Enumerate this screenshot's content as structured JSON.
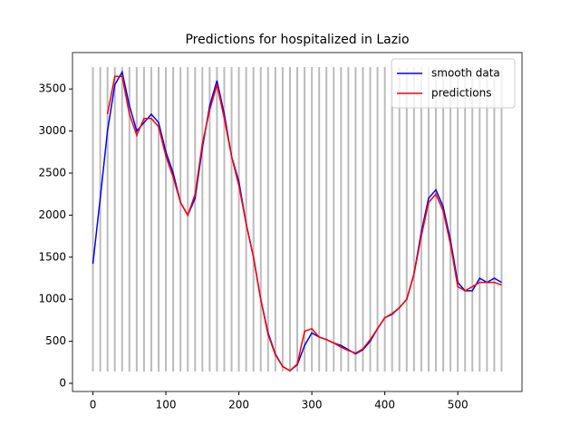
{
  "chart_data": {
    "type": "line",
    "title": "Predictions for hospitalized in Lazio",
    "x": [
      0,
      10,
      20,
      30,
      40,
      50,
      60,
      70,
      80,
      90,
      100,
      110,
      120,
      130,
      140,
      150,
      160,
      170,
      180,
      190,
      200,
      210,
      220,
      230,
      240,
      250,
      260,
      270,
      280,
      290,
      300,
      310,
      320,
      330,
      340,
      350,
      360,
      370,
      380,
      390,
      400,
      410,
      420,
      430,
      440,
      450,
      460,
      470,
      480,
      490,
      500,
      510,
      520,
      530,
      540,
      550,
      560
    ],
    "series": [
      {
        "name": "smooth data",
        "color": "#0000ff",
        "values": [
          1420,
          2200,
          3000,
          3550,
          3700,
          3300,
          3000,
          3100,
          3200,
          3100,
          2750,
          2500,
          2150,
          2000,
          2200,
          2800,
          3300,
          3600,
          3200,
          2700,
          2400,
          1900,
          1500,
          1000,
          600,
          350,
          200,
          150,
          220,
          450,
          600,
          550,
          520,
          480,
          450,
          400,
          350,
          400,
          500,
          650,
          780,
          820,
          900,
          1000,
          1300,
          1800,
          2200,
          2300,
          2100,
          1700,
          1200,
          1100,
          1100,
          1250,
          1200,
          1250,
          1200
        ]
      },
      {
        "name": "predictions",
        "color": "#ff0000",
        "values": [
          null,
          null,
          3200,
          3650,
          3650,
          3200,
          2950,
          3150,
          3150,
          3050,
          2700,
          2450,
          2150,
          2000,
          2250,
          2850,
          3250,
          3550,
          3150,
          2700,
          2350,
          1900,
          1500,
          1000,
          580,
          340,
          200,
          150,
          230,
          620,
          650,
          550,
          520,
          480,
          430,
          390,
          360,
          410,
          520,
          650,
          780,
          830,
          900,
          1000,
          1300,
          1750,
          2150,
          2250,
          2050,
          1650,
          1150,
          1100,
          1150,
          1200,
          1200,
          1200,
          1170
        ]
      }
    ],
    "vlines": {
      "x": [
        0,
        10,
        20,
        30,
        40,
        50,
        60,
        70,
        80,
        90,
        100,
        110,
        120,
        130,
        140,
        150,
        160,
        170,
        180,
        190,
        200,
        210,
        220,
        230,
        240,
        250,
        260,
        270,
        280,
        290,
        300,
        310,
        320,
        330,
        340,
        350,
        360,
        370,
        380,
        390,
        400,
        410,
        420,
        430,
        440,
        450,
        460,
        470,
        480,
        490,
        500,
        510,
        520,
        530,
        540,
        550,
        560
      ],
      "ymin": 140,
      "ymax": 3760,
      "color": "#bbbbbb"
    },
    "xlim": [
      -28,
      588
    ],
    "ylim": [
      -97,
      3933
    ],
    "xticks": [
      0,
      100,
      200,
      300,
      400,
      500
    ],
    "yticks": [
      0,
      500,
      1000,
      1500,
      2000,
      2500,
      3000,
      3500
    ],
    "legend": "upper right"
  }
}
